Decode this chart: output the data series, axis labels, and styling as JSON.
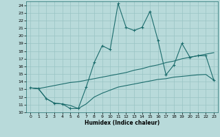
{
  "xlabel": "Humidex (Indice chaleur)",
  "xlim": [
    -0.5,
    23.5
  ],
  "ylim": [
    10,
    24.5
  ],
  "yticks": [
    10,
    11,
    12,
    13,
    14,
    15,
    16,
    17,
    18,
    19,
    20,
    21,
    22,
    23,
    24
  ],
  "xticks": [
    0,
    1,
    2,
    3,
    4,
    5,
    6,
    7,
    8,
    9,
    10,
    11,
    12,
    13,
    14,
    15,
    16,
    17,
    18,
    19,
    20,
    21,
    22,
    23
  ],
  "bg_color": "#b8dada",
  "grid_color": "#99c4c4",
  "line_color": "#1a6b6b",
  "line1_x": [
    0,
    1,
    2,
    3,
    4,
    5,
    6,
    7,
    8,
    9,
    10,
    11,
    12,
    13,
    14,
    15,
    16,
    17,
    18,
    19,
    20,
    21,
    22,
    23
  ],
  "line1_y": [
    13.2,
    13.1,
    11.8,
    11.2,
    11.1,
    10.5,
    10.5,
    13.3,
    16.5,
    18.7,
    18.2,
    24.2,
    21.1,
    20.7,
    21.1,
    23.2,
    19.4,
    14.9,
    16.2,
    19.0,
    17.2,
    17.4,
    17.4,
    14.2
  ],
  "line2_x": [
    0,
    1,
    2,
    3,
    4,
    5,
    6,
    7,
    8,
    9,
    10,
    11,
    12,
    13,
    14,
    15,
    16,
    17,
    18,
    19,
    20,
    21,
    22,
    23
  ],
  "line2_y": [
    13.2,
    13.1,
    13.3,
    13.5,
    13.7,
    13.9,
    14.0,
    14.2,
    14.4,
    14.6,
    14.8,
    15.0,
    15.2,
    15.5,
    15.7,
    16.0,
    16.2,
    16.5,
    16.7,
    17.0,
    17.2,
    17.4,
    17.6,
    17.8
  ],
  "line3_x": [
    0,
    1,
    2,
    3,
    4,
    5,
    6,
    7,
    8,
    9,
    10,
    11,
    12,
    13,
    14,
    15,
    16,
    17,
    18,
    19,
    20,
    21,
    22,
    23
  ],
  "line3_y": [
    13.2,
    13.1,
    11.8,
    11.2,
    11.1,
    10.9,
    10.5,
    11.1,
    12.0,
    12.5,
    12.9,
    13.3,
    13.5,
    13.7,
    13.9,
    14.1,
    14.3,
    14.4,
    14.6,
    14.7,
    14.8,
    14.9,
    14.95,
    14.2
  ]
}
